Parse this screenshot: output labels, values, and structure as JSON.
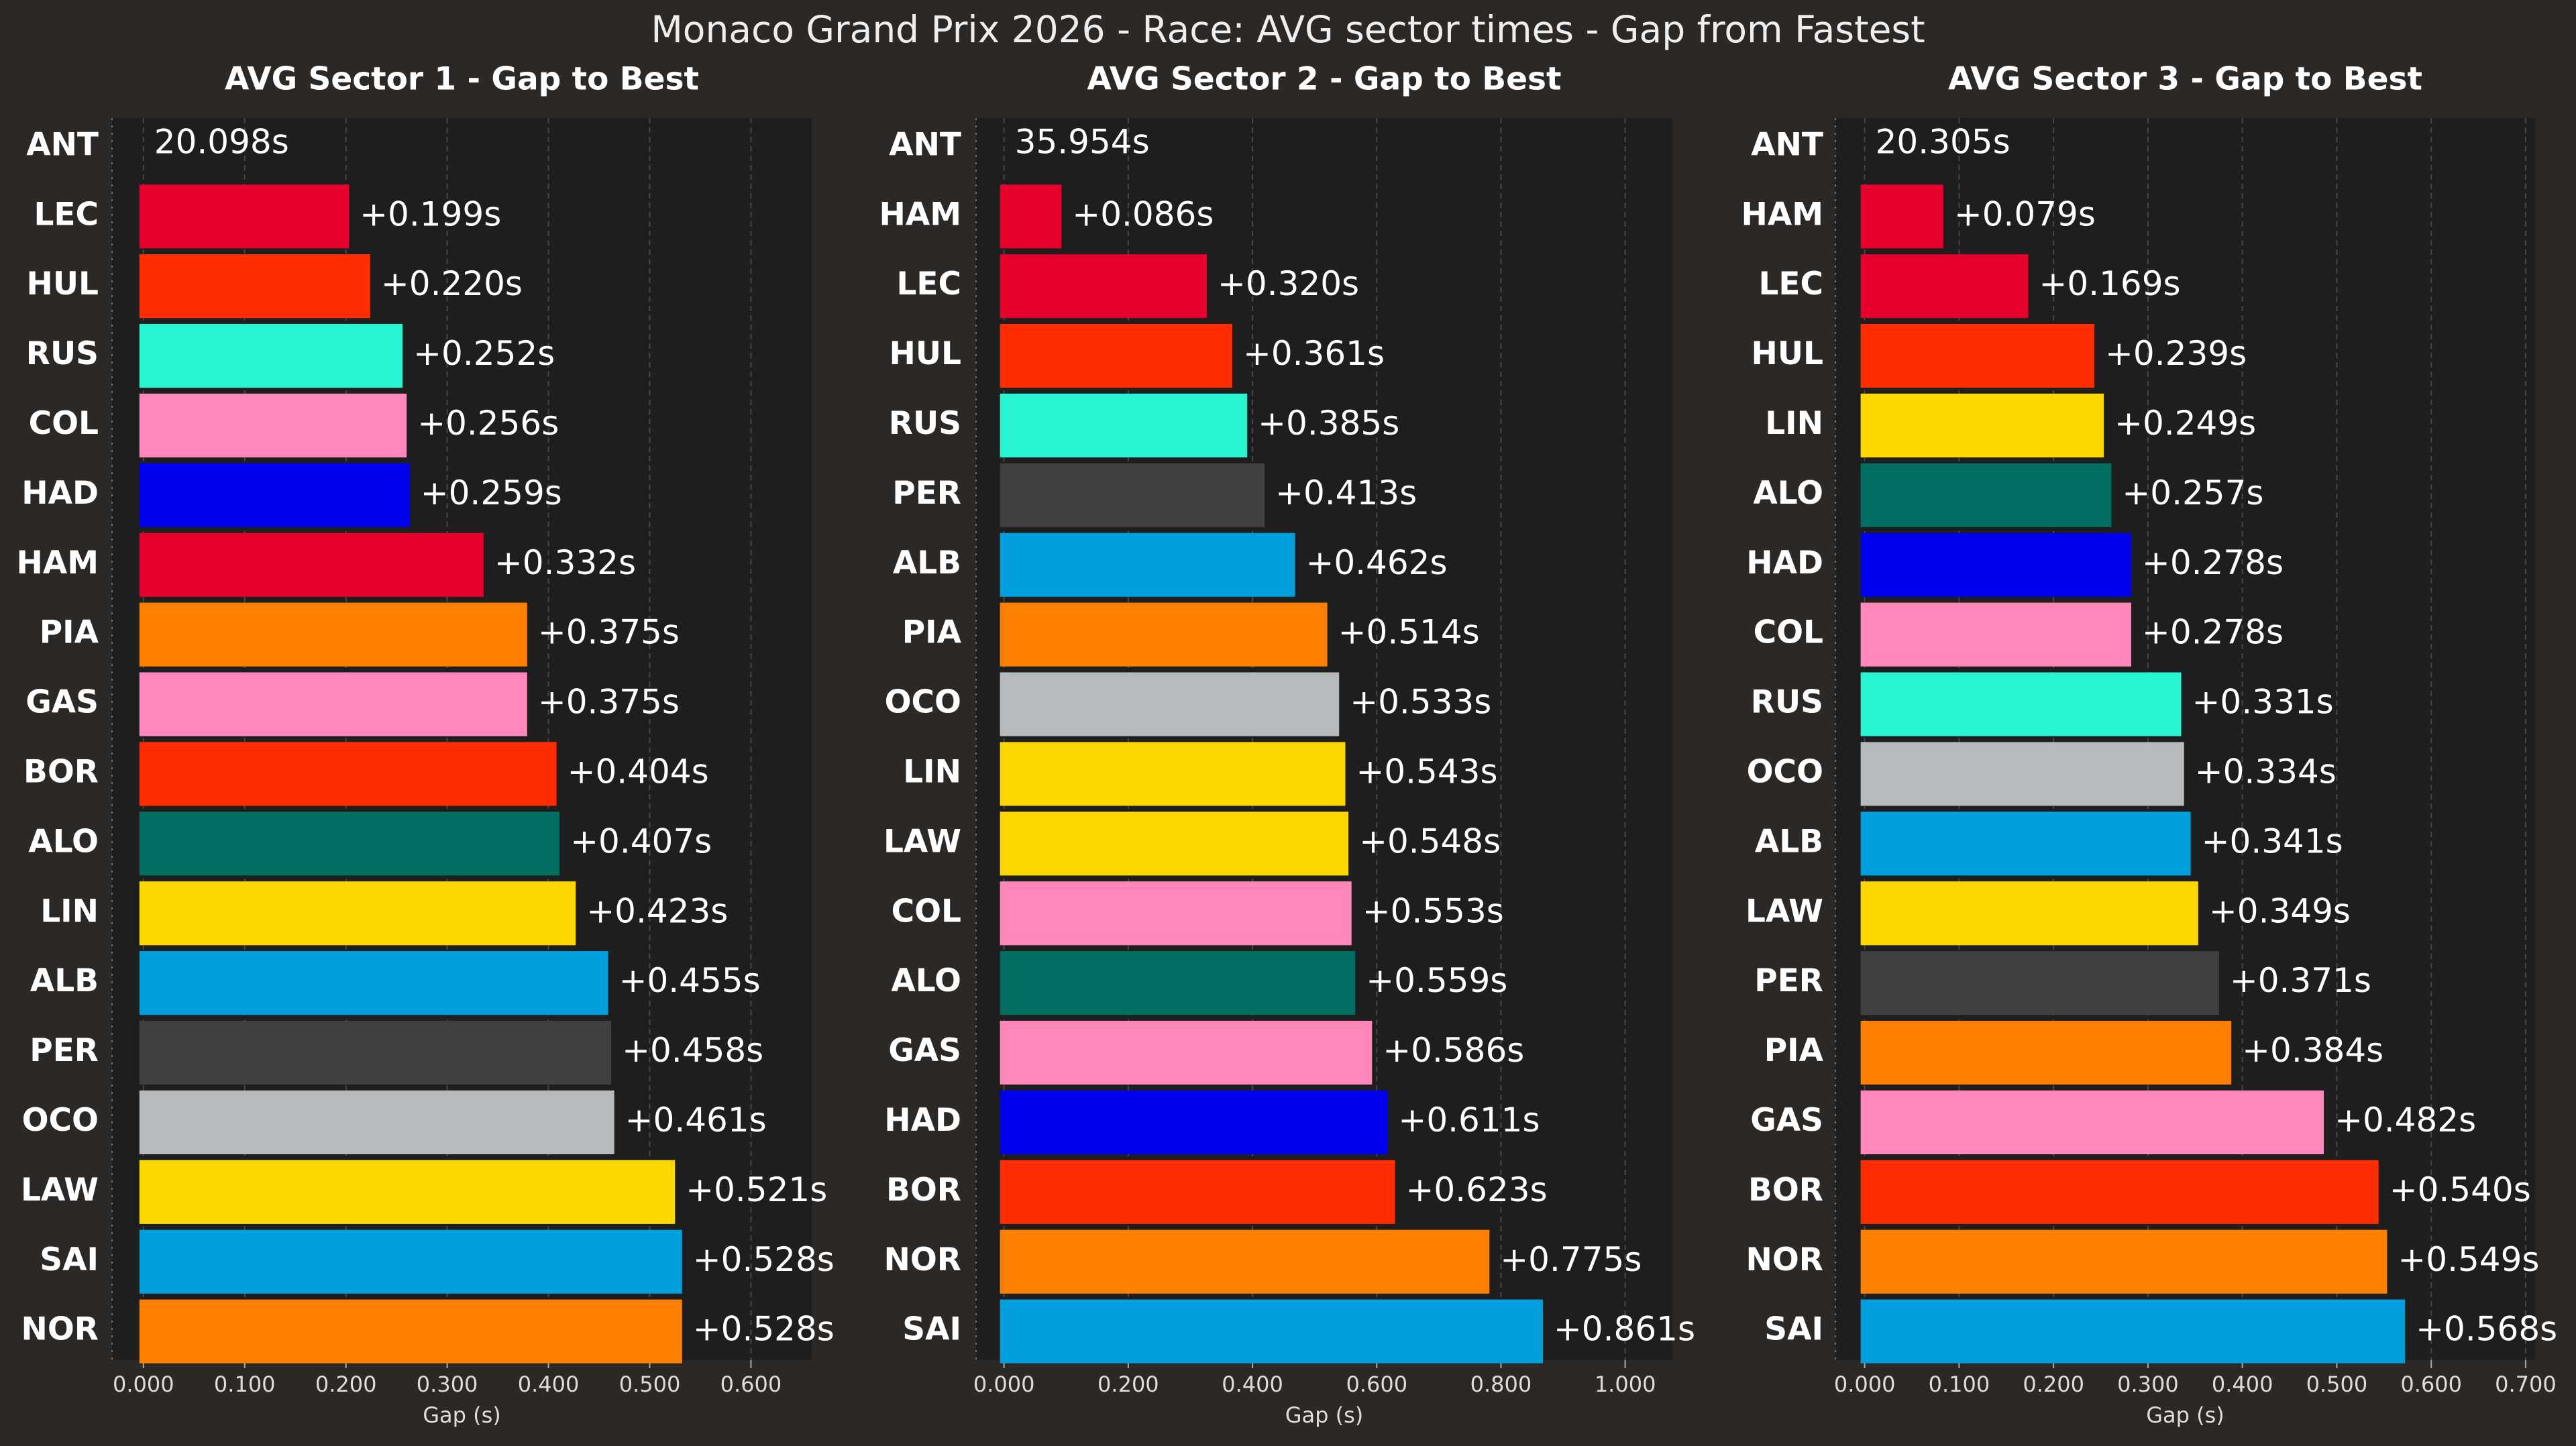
{
  "title": "Monaco Grand Prix 2026 - Race: AVG sector times - Gap from Fastest",
  "chart_data": [
    {
      "type": "barh",
      "title": "AVG Sector 1 - Gap to Best",
      "xlabel": "Gap (s)",
      "categories": [
        "ANT",
        "LEC",
        "HUL",
        "RUS",
        "COL",
        "HAD",
        "HAM",
        "PIA",
        "GAS",
        "BOR",
        "ALO",
        "LIN",
        "ALB",
        "PER",
        "OCO",
        "LAW",
        "SAI",
        "NOR"
      ],
      "values": [
        0,
        0.199,
        0.22,
        0.252,
        0.256,
        0.259,
        0.332,
        0.375,
        0.375,
        0.404,
        0.407,
        0.423,
        0.455,
        0.458,
        0.461,
        0.521,
        0.528,
        0.528
      ],
      "value_labels": [
        null,
        "+0.199s",
        "+0.220s",
        "+0.252s",
        "+0.256s",
        "+0.259s",
        "+0.332s",
        "+0.375s",
        "+0.375s",
        "+0.404s",
        "+0.407s",
        "+0.423s",
        "+0.455s",
        "+0.458s",
        "+0.461s",
        "+0.521s",
        "+0.528s",
        "+0.528s"
      ],
      "best_label": "20.098s",
      "colors": [
        "#27F4D2",
        "#E8002D",
        "#FF2D00",
        "#27F4D2",
        "#FF87BC",
        "#0000F0",
        "#E8002D",
        "#FF8000",
        "#FF87BC",
        "#FF2D00",
        "#006F62",
        "#FFD700",
        "#00A0DE",
        "#404040",
        "#B6BABD",
        "#FFD700",
        "#00A0DE",
        "#FF8000"
      ],
      "xlim": [
        -0.031,
        0.66
      ],
      "xticks": [
        {
          "value": 0,
          "label": "0.000"
        },
        {
          "value": 0.1,
          "label": "0.100"
        },
        {
          "value": 0.2,
          "label": "0.200"
        },
        {
          "value": 0.3,
          "label": "0.300"
        },
        {
          "value": 0.4,
          "label": "0.400"
        },
        {
          "value": 0.5,
          "label": "0.500"
        },
        {
          "value": 0.6,
          "label": "0.600"
        }
      ],
      "grid": true
    },
    {
      "type": "barh",
      "title": "AVG Sector 2 - Gap to Best",
      "xlabel": "Gap (s)",
      "categories": [
        "ANT",
        "HAM",
        "LEC",
        "HUL",
        "RUS",
        "PER",
        "ALB",
        "PIA",
        "OCO",
        "LIN",
        "LAW",
        "COL",
        "ALO",
        "GAS",
        "HAD",
        "BOR",
        "NOR",
        "SAI"
      ],
      "values": [
        0,
        0.086,
        0.32,
        0.361,
        0.385,
        0.413,
        0.462,
        0.514,
        0.533,
        0.543,
        0.548,
        0.553,
        0.559,
        0.586,
        0.611,
        0.623,
        0.775,
        0.861
      ],
      "value_labels": [
        null,
        "+0.086s",
        "+0.320s",
        "+0.361s",
        "+0.385s",
        "+0.413s",
        "+0.462s",
        "+0.514s",
        "+0.533s",
        "+0.543s",
        "+0.548s",
        "+0.553s",
        "+0.559s",
        "+0.586s",
        "+0.611s",
        "+0.623s",
        "+0.775s",
        "+0.861s"
      ],
      "best_label": "35.954s",
      "colors": [
        "#27F4D2",
        "#E8002D",
        "#E8002D",
        "#FF2D00",
        "#27F4D2",
        "#404040",
        "#00A0DE",
        "#FF8000",
        "#B6BABD",
        "#FFD700",
        "#FFD700",
        "#FF87BC",
        "#006F62",
        "#FF87BC",
        "#0000F0",
        "#FF2D00",
        "#FF8000",
        "#00A0DE"
      ],
      "xlim": [
        -0.045,
        1.076
      ],
      "xticks": [
        {
          "value": 0,
          "label": "0.000"
        },
        {
          "value": 0.2,
          "label": "0.200"
        },
        {
          "value": 0.4,
          "label": "0.400"
        },
        {
          "value": 0.6,
          "label": "0.600"
        },
        {
          "value": 0.8,
          "label": "0.800"
        },
        {
          "value": 1,
          "label": "1.000"
        }
      ],
      "grid": true
    },
    {
      "type": "barh",
      "title": "AVG Sector 3 - Gap to Best",
      "xlabel": "Gap (s)",
      "categories": [
        "ANT",
        "HAM",
        "LEC",
        "HUL",
        "LIN",
        "ALO",
        "HAD",
        "COL",
        "RUS",
        "OCO",
        "ALB",
        "LAW",
        "PER",
        "PIA",
        "GAS",
        "BOR",
        "NOR",
        "SAI"
      ],
      "values": [
        0,
        0.079,
        0.169,
        0.239,
        0.249,
        0.257,
        0.278,
        0.278,
        0.331,
        0.334,
        0.341,
        0.349,
        0.371,
        0.384,
        0.482,
        0.54,
        0.549,
        0.568
      ],
      "value_labels": [
        null,
        "+0.079s",
        "+0.169s",
        "+0.239s",
        "+0.249s",
        "+0.257s",
        "+0.278s",
        "+0.278s",
        "+0.331s",
        "+0.334s",
        "+0.341s",
        "+0.349s",
        "+0.371s",
        "+0.384s",
        "+0.482s",
        "+0.540s",
        "+0.549s",
        "+0.568s"
      ],
      "best_label": "20.305s",
      "colors": [
        "#27F4D2",
        "#E8002D",
        "#E8002D",
        "#FF2D00",
        "#FFD700",
        "#006F62",
        "#0000F0",
        "#FF87BC",
        "#27F4D2",
        "#B6BABD",
        "#00A0DE",
        "#FFD700",
        "#404040",
        "#FF8000",
        "#FF87BC",
        "#FF2D00",
        "#FF8000",
        "#00A0DE"
      ],
      "xlim": [
        -0.031,
        0.71
      ],
      "xticks": [
        {
          "value": 0,
          "label": "0.000"
        },
        {
          "value": 0.1,
          "label": "0.100"
        },
        {
          "value": 0.2,
          "label": "0.200"
        },
        {
          "value": 0.3,
          "label": "0.300"
        },
        {
          "value": 0.4,
          "label": "0.400"
        },
        {
          "value": 0.5,
          "label": "0.500"
        },
        {
          "value": 0.6,
          "label": "0.600"
        },
        {
          "value": 0.7,
          "label": "0.700"
        }
      ],
      "grid": true
    }
  ]
}
